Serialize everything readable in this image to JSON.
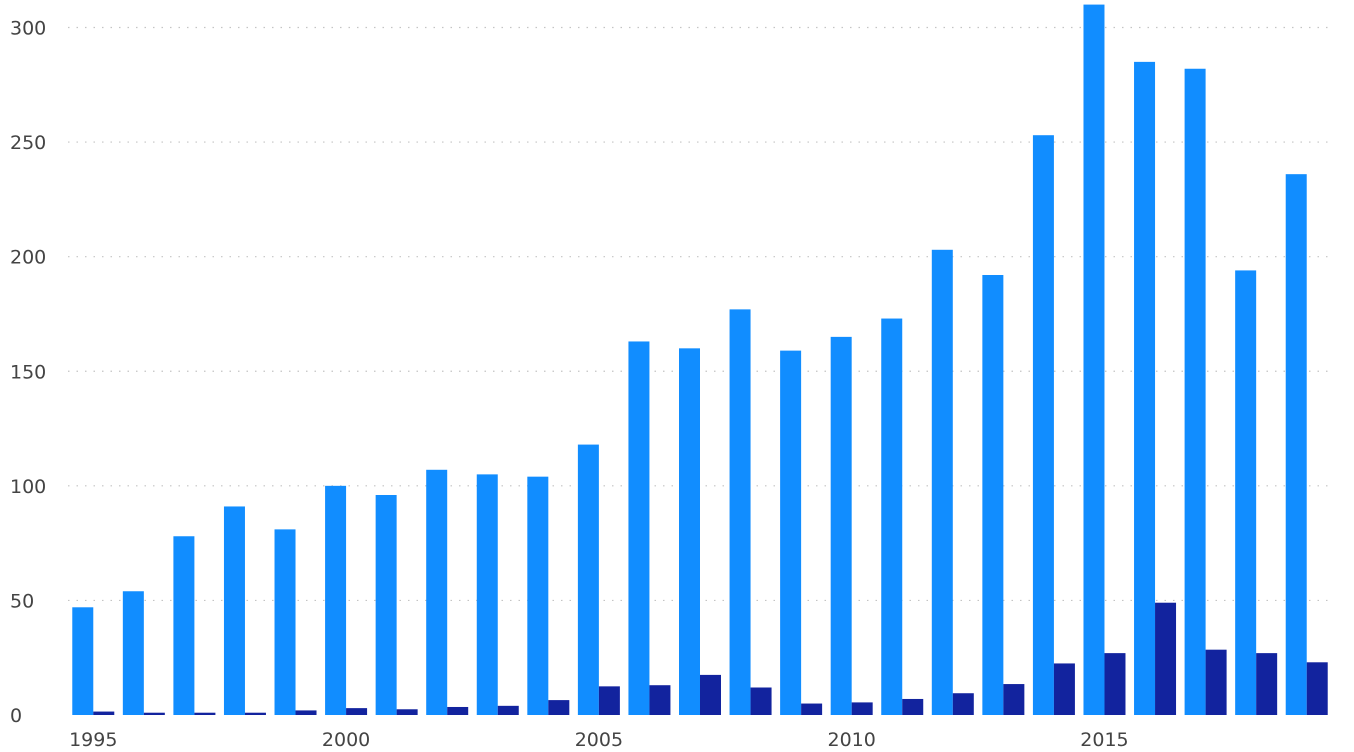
{
  "chart_data": {
    "type": "bar",
    "categories": [
      "1995",
      "1996",
      "1997",
      "1998",
      "1999",
      "2000",
      "2001",
      "2002",
      "2003",
      "2004",
      "2005",
      "2006",
      "2007",
      "2008",
      "2009",
      "2010",
      "2011",
      "2012",
      "2013",
      "2014",
      "2015",
      "2016",
      "2017",
      "2018",
      "2019"
    ],
    "series": [
      {
        "values": [
          47,
          54,
          78,
          91,
          81,
          100,
          96,
          107,
          105,
          104,
          118,
          163,
          160,
          177,
          159,
          165,
          173,
          203,
          192,
          253,
          310,
          285,
          282,
          194,
          236
        ],
        "color": "#118dff"
      },
      {
        "values": [
          1.5,
          1,
          1,
          1,
          2,
          3,
          2.5,
          3.5,
          4,
          6.5,
          12.5,
          13,
          17.5,
          12,
          5,
          5.5,
          7,
          9.5,
          13.5,
          22.5,
          27,
          49,
          28.5,
          27,
          23
        ],
        "color": "#12239e"
      }
    ],
    "xticks": [
      "1995",
      "2000",
      "2005",
      "2010",
      "2015"
    ],
    "yticks": [
      0,
      50,
      100,
      150,
      200,
      250,
      300
    ],
    "ylim": [
      0,
      312
    ],
    "grid": true,
    "title": "",
    "xlabel": "",
    "ylabel": ""
  }
}
